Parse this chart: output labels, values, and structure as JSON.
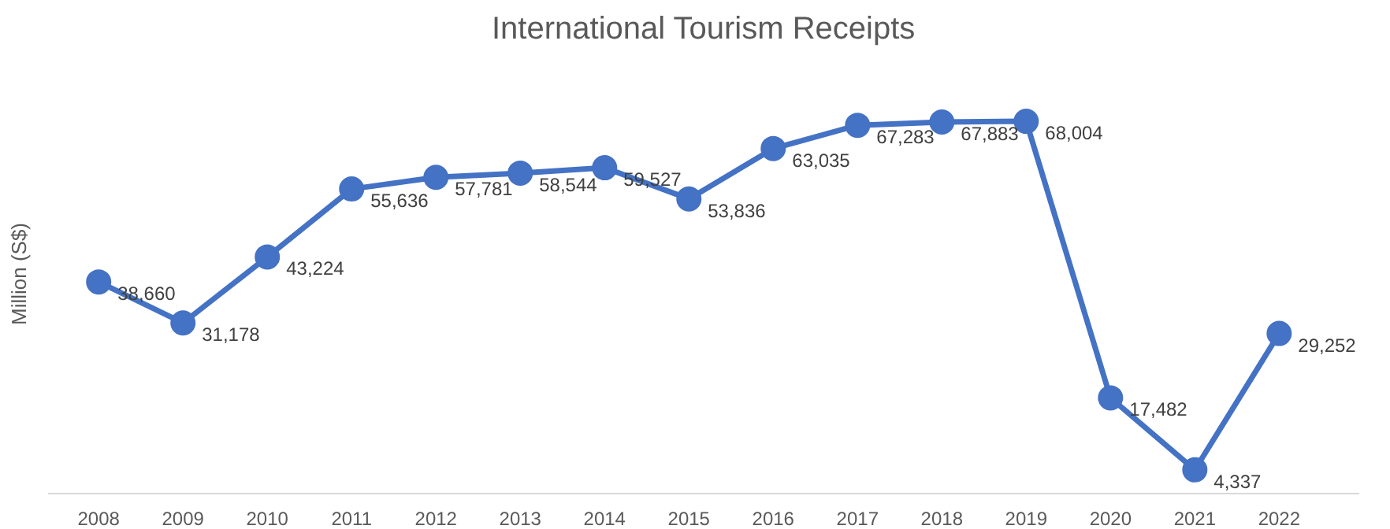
{
  "chart_data": {
    "type": "line",
    "title": "International Tourism Receipts",
    "ylabel": "Million (S$)",
    "categories": [
      "2008",
      "2009",
      "2010",
      "2011",
      "2012",
      "2013",
      "2014",
      "2015",
      "2016",
      "2017",
      "2018",
      "2019",
      "2020",
      "2021",
      "2022"
    ],
    "series": [
      {
        "color": "#4472c4",
        "values": [
          38660,
          31178,
          43224,
          55636,
          57781,
          58544,
          59527,
          53836,
          63035,
          67283,
          67883,
          68004,
          17482,
          4337,
          29252
        ],
        "value_labels": [
          "38,660",
          "31,178",
          "43,224",
          "55,636",
          "57,781",
          "58,544",
          "59,527",
          "53,836",
          "63,035",
          "67,283",
          "67,883",
          "68,004",
          "17,482",
          "4,337",
          "29,252"
        ]
      }
    ],
    "marker": "circle",
    "line_style": "solid",
    "tick_labels": "x"
  }
}
